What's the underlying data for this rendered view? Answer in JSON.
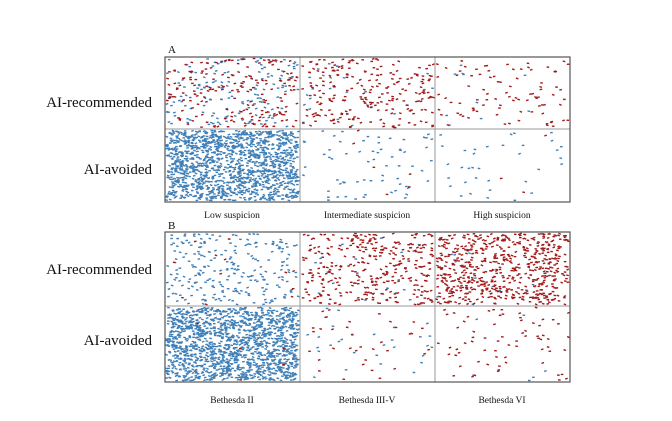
{
  "chart_data": [
    {
      "type": "scatter",
      "panel_label": "A",
      "rows": [
        "AI-recommended",
        "AI-avoided"
      ],
      "columns": [
        "Low suspicion",
        "Intermediate suspicion",
        "High suspicion"
      ],
      "cell_counts": {
        "AI-recommended": {
          "red": [
            190,
            230,
            90
          ],
          "blue": [
            160,
            25,
            10
          ]
        },
        "AI-avoided": {
          "red": [
            0,
            6,
            3
          ],
          "blue": [
            1400,
            65,
            35
          ]
        }
      }
    },
    {
      "type": "scatter",
      "panel_label": "B",
      "rows": [
        "AI-recommended",
        "AI-avoided"
      ],
      "columns": [
        "Bethesda II",
        "Bethesda III-V",
        "Bethesda VI"
      ],
      "cell_counts": {
        "AI-recommended": {
          "red": [
            12,
            330,
            620
          ],
          "blue": [
            240,
            20,
            15
          ]
        },
        "AI-avoided": {
          "red": [
            5,
            35,
            70
          ],
          "blue": [
            1500,
            30,
            6
          ]
        }
      }
    }
  ],
  "colors": {
    "red": "#a11a1a",
    "blue": "#3f7fb7",
    "border": "#555555",
    "divider": "#9a9a9a"
  }
}
